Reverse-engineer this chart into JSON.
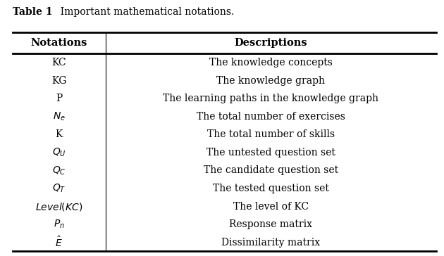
{
  "title_bold": "Table 1",
  "title_rest": "  Important mathematical notations.",
  "col_headers": [
    "Notations",
    "Descriptions"
  ],
  "rows": [
    [
      "KC",
      "The knowledge concepts"
    ],
    [
      "KG",
      "The knowledge graph"
    ],
    [
      "P",
      "The learning paths in the knowledge graph"
    ],
    [
      "$N_e$",
      "The total number of exercises"
    ],
    [
      "K",
      "The total number of skills"
    ],
    [
      "$Q_U$",
      "The untested question set"
    ],
    [
      "$Q_C$",
      "The candidate question set"
    ],
    [
      "$Q_T$",
      "The tested question set"
    ],
    [
      "$\\mathit{Level}(KC)$",
      "The level of KC"
    ],
    [
      "$P_n$",
      "Response matrix"
    ],
    [
      "$\\hat{E}$",
      "Dissimilarity matrix"
    ]
  ],
  "col_split": 0.22,
  "fig_width": 6.3,
  "fig_height": 3.64,
  "background": "#ffffff",
  "header_fontsize": 10.5,
  "row_fontsize": 10,
  "title_fontsize": 10
}
